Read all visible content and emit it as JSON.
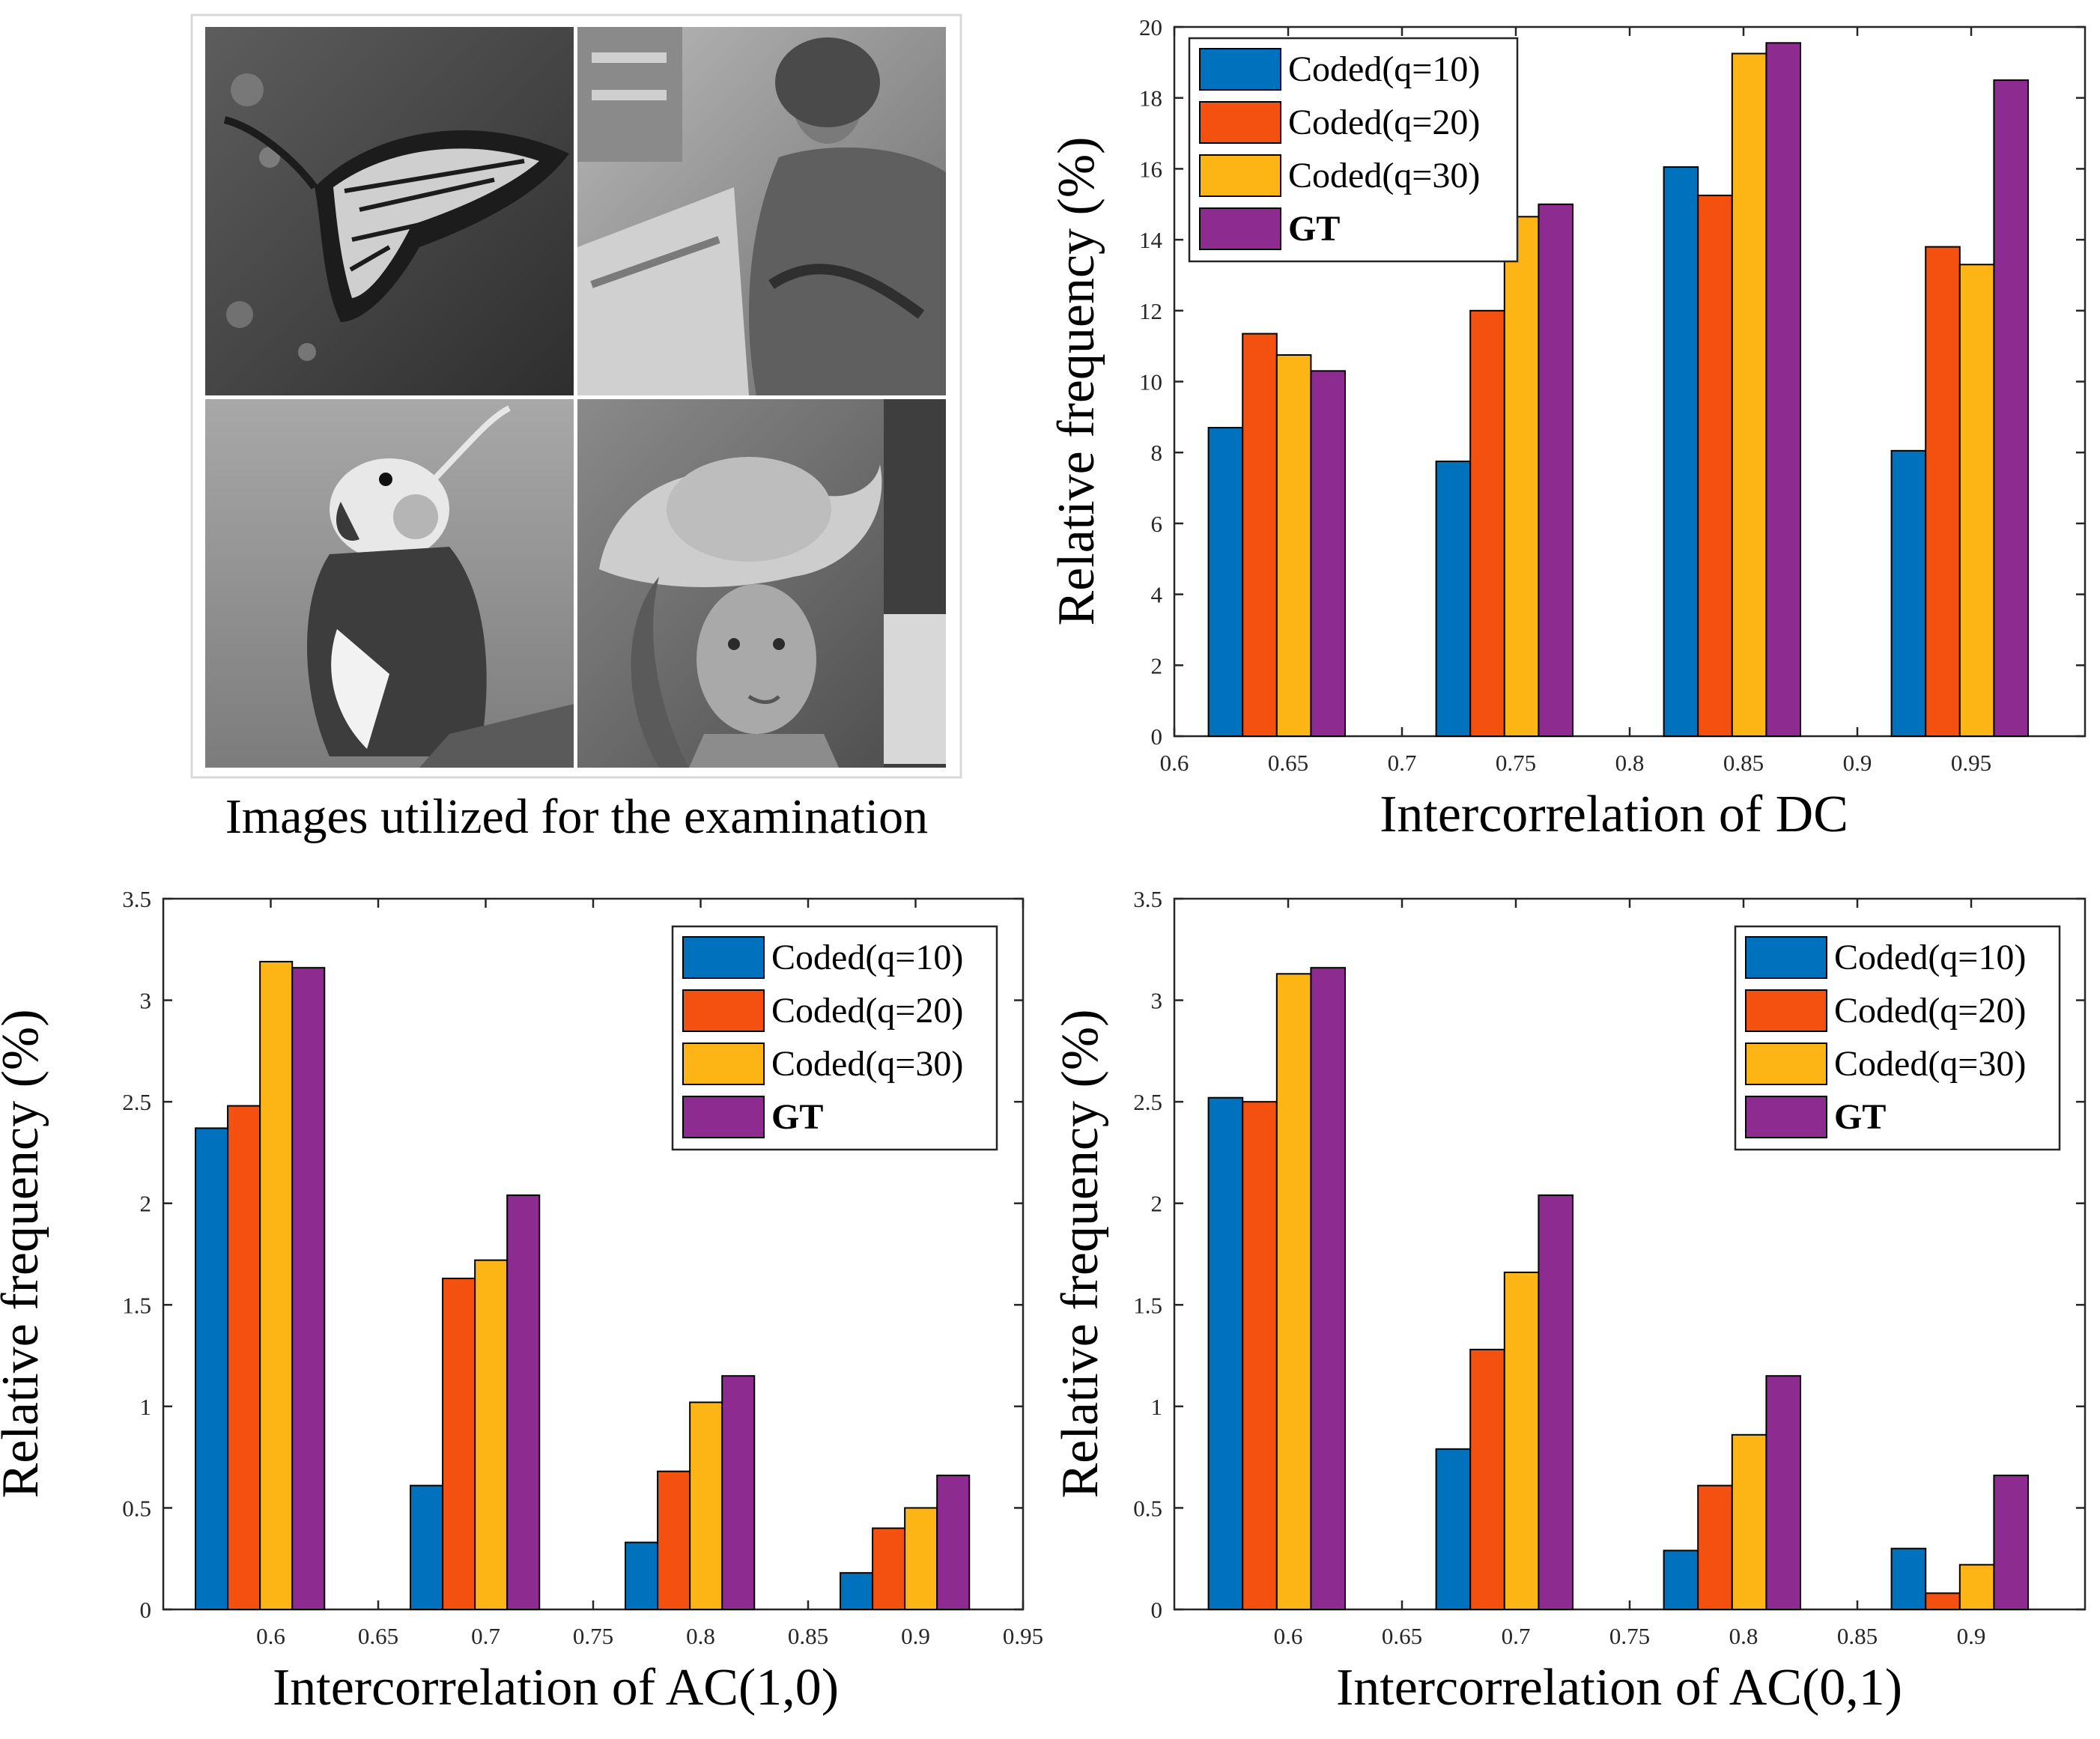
{
  "colors": {
    "q10": "#0072BD",
    "q20": "#F45110",
    "q30": "#FDB515",
    "gt": "#8E2B91",
    "grey_dark": "#4a4a4a",
    "grey_mid": "#8c8c8c",
    "grey_light": "#c4c4c4"
  },
  "photo_panel": {
    "caption": "Images utilized for the examination",
    "tiles": [
      {
        "subject": "butterfly"
      },
      {
        "subject": "woman-with-scarf"
      },
      {
        "subject": "parrot"
      },
      {
        "subject": "woman-with-hat"
      }
    ]
  },
  "chart_data": [
    {
      "id": "dc",
      "type": "bar",
      "title": "",
      "xlabel": "Intercorrelation of DC",
      "ylabel": "Relative frequency (%)",
      "xlim": [
        0.6,
        1.0
      ],
      "ylim": [
        0,
        20
      ],
      "xticks": [
        0.6,
        0.65,
        0.7,
        0.75,
        0.8,
        0.85,
        0.9,
        0.95
      ],
      "xtick_labels": [
        "0.6",
        "0.65",
        "0.7",
        "0.75",
        "0.8",
        "0.85",
        "0.9",
        "0.95"
      ],
      "yticks": [
        0,
        2,
        4,
        6,
        8,
        10,
        12,
        14,
        16,
        18,
        20
      ],
      "ytick_labels": [
        "0",
        "2",
        "4",
        "6",
        "8",
        "10",
        "12",
        "14",
        "16",
        "18",
        "20"
      ],
      "group_centers": [
        0.645,
        0.745,
        0.845,
        0.945
      ],
      "bar_width": 0.015,
      "legend_position": "top-left",
      "series": [
        {
          "name": "Coded(q=10)",
          "key": "q10",
          "bold": false,
          "values": [
            8.7,
            7.75,
            16.05,
            8.05
          ]
        },
        {
          "name": "Coded(q=20)",
          "key": "q20",
          "bold": false,
          "values": [
            11.35,
            12.0,
            15.25,
            13.8
          ]
        },
        {
          "name": "Coded(q=30)",
          "key": "q30",
          "bold": false,
          "values": [
            10.75,
            14.65,
            19.25,
            13.3
          ]
        },
        {
          "name": "GT",
          "key": "gt",
          "bold": true,
          "values": [
            10.3,
            15.0,
            19.55,
            18.5
          ]
        }
      ]
    },
    {
      "id": "ac10",
      "type": "bar",
      "title": "",
      "xlabel": "Intercorrelation of AC(1,0)",
      "ylabel": "Relative frequency (%)",
      "xlim": [
        0.55,
        0.95
      ],
      "ylim": [
        0,
        3.5
      ],
      "xticks": [
        0.6,
        0.65,
        0.7,
        0.75,
        0.8,
        0.85,
        0.9,
        0.95
      ],
      "xtick_labels": [
        "0.6",
        "0.65",
        "0.7",
        "0.75",
        "0.8",
        "0.85",
        "0.9",
        "0.95"
      ],
      "yticks": [
        0,
        0.5,
        1,
        1.5,
        2,
        2.5,
        3,
        3.5
      ],
      "ytick_labels": [
        "0",
        "0.5",
        "1",
        "1.5",
        "2",
        "2.5",
        "3",
        "3.5"
      ],
      "group_centers": [
        0.595,
        0.695,
        0.795,
        0.895
      ],
      "bar_width": 0.015,
      "legend_position": "top-right",
      "series": [
        {
          "name": "Coded(q=10)",
          "key": "q10",
          "bold": false,
          "values": [
            2.37,
            0.61,
            0.33,
            0.18
          ]
        },
        {
          "name": "Coded(q=20)",
          "key": "q20",
          "bold": false,
          "values": [
            2.48,
            1.63,
            0.68,
            0.4
          ]
        },
        {
          "name": "Coded(q=30)",
          "key": "q30",
          "bold": false,
          "values": [
            3.19,
            1.72,
            1.02,
            0.5
          ]
        },
        {
          "name": "GT",
          "key": "gt",
          "bold": true,
          "values": [
            3.16,
            2.04,
            1.15,
            0.66
          ]
        }
      ]
    },
    {
      "id": "ac01",
      "type": "bar",
      "title": "",
      "xlabel": "Intercorrelation of AC(0,1)",
      "ylabel": "Relative frequency (%)",
      "xlim": [
        0.55,
        0.95
      ],
      "ylim": [
        0,
        3.5
      ],
      "xticks": [
        0.6,
        0.65,
        0.7,
        0.75,
        0.8,
        0.85,
        0.9
      ],
      "xtick_labels": [
        "0.6",
        "0.65",
        "0.7",
        "0.75",
        "0.8",
        "0.85",
        "0.9"
      ],
      "yticks": [
        0,
        0.5,
        1,
        1.5,
        2,
        2.5,
        3,
        3.5
      ],
      "ytick_labels": [
        "0",
        "0.5",
        "1",
        "1.5",
        "2",
        "2.5",
        "3",
        "3.5"
      ],
      "group_centers": [
        0.595,
        0.695,
        0.795,
        0.895
      ],
      "bar_width": 0.015,
      "legend_position": "top-right",
      "series": [
        {
          "name": "Coded(q=10)",
          "key": "q10",
          "bold": false,
          "values": [
            2.52,
            0.79,
            0.29,
            0.3
          ]
        },
        {
          "name": "Coded(q=20)",
          "key": "q20",
          "bold": false,
          "values": [
            2.5,
            1.28,
            0.61,
            0.08
          ]
        },
        {
          "name": "Coded(q=30)",
          "key": "q30",
          "bold": false,
          "values": [
            3.13,
            1.66,
            0.86,
            0.22
          ]
        },
        {
          "name": "GT",
          "key": "gt",
          "bold": true,
          "values": [
            3.16,
            2.04,
            1.15,
            0.66
          ]
        }
      ]
    }
  ]
}
